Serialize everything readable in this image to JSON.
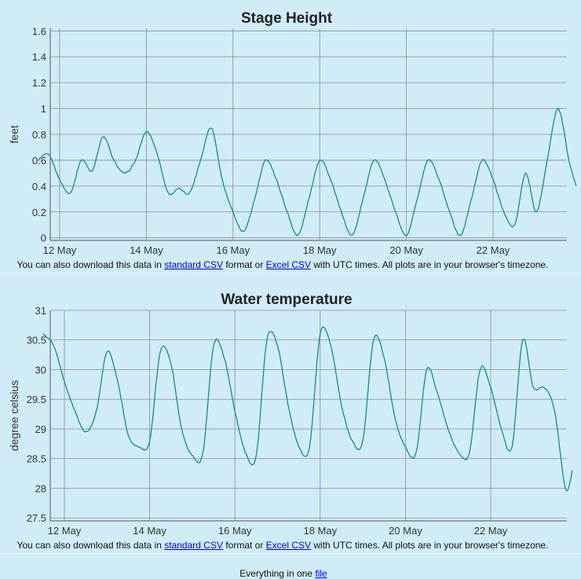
{
  "notice": {
    "prefix": "You can also download this data in",
    "standard_csv": "standard CSV",
    "middle": "format or",
    "excel_csv": "Excel CSV",
    "suffix": "with UTC times. All plots are in your browser's timezone."
  },
  "footer": {
    "prefix": "Everything in one",
    "link": "file"
  },
  "colors": {
    "line": "#138d90",
    "grid": "#8c8c8c",
    "background": "#d0ecf7"
  },
  "chart_data": [
    {
      "type": "line",
      "title": "Stage Height",
      "ylabel": "feet",
      "xlabel": "",
      "x_ticks": [
        "12 May",
        "14 May",
        "16 May",
        "18 May",
        "20 May",
        "22 May"
      ],
      "y_ticks": [
        "0",
        "0.2",
        "0.4",
        "0.6",
        "0.8",
        "1",
        "1.2",
        "1.4",
        "1.6"
      ],
      "ylim": [
        -0.02,
        1.62
      ],
      "xlim": [
        "2024-05-11T12:00",
        "2024-05-23T22:00"
      ],
      "grid": true,
      "series": [
        {
          "x": [
            "2024-05-11T12:00",
            "2024-05-11T18:00",
            "2024-05-12T00:00",
            "2024-05-12T06:00",
            "2024-05-12T12:00",
            "2024-05-12T18:00",
            "2024-05-13T00:00",
            "2024-05-13T06:00",
            "2024-05-13T12:00",
            "2024-05-13T18:00",
            "2024-05-14T00:00",
            "2024-05-14T06:00",
            "2024-05-14T12:00",
            "2024-05-14T18:00",
            "2024-05-15T00:00",
            "2024-05-15T06:00",
            "2024-05-15T12:00",
            "2024-05-15T18:00",
            "2024-05-16T00:00",
            "2024-05-16T06:00",
            "2024-05-16T12:00",
            "2024-05-16T18:00",
            "2024-05-17T00:00",
            "2024-05-17T06:00",
            "2024-05-17T12:00",
            "2024-05-17T18:00",
            "2024-05-18T00:00",
            "2024-05-18T06:00",
            "2024-05-18T12:00",
            "2024-05-18T18:00",
            "2024-05-19T00:00",
            "2024-05-19T06:00",
            "2024-05-19T12:00",
            "2024-05-19T18:00",
            "2024-05-20T00:00",
            "2024-05-20T06:00",
            "2024-05-20T12:00",
            "2024-05-20T18:00",
            "2024-05-21T00:00",
            "2024-05-21T06:00",
            "2024-05-21T12:00",
            "2024-05-21T18:00",
            "2024-05-22T00:00",
            "2024-05-22T06:00",
            "2024-05-22T12:00",
            "2024-05-22T18:00",
            "2024-05-23T00:00",
            "2024-05-23T06:00",
            "2024-05-23T12:00",
            "2024-05-23T18:00",
            "2024-05-23T22:00"
          ],
          "y": [
            0.6,
            0.64,
            0.45,
            0.35,
            0.6,
            0.52,
            0.78,
            0.6,
            0.5,
            0.6,
            0.82,
            0.65,
            0.35,
            0.38,
            0.35,
            0.6,
            0.85,
            0.45,
            0.2,
            0.05,
            0.3,
            0.6,
            0.45,
            0.2,
            0.02,
            0.3,
            0.6,
            0.45,
            0.2,
            0.02,
            0.3,
            0.6,
            0.45,
            0.2,
            0.02,
            0.3,
            0.6,
            0.45,
            0.2,
            0.02,
            0.3,
            0.6,
            0.45,
            0.2,
            0.1,
            0.5,
            0.2,
            0.6,
            1.0,
            0.6,
            0.4
          ]
        }
      ]
    },
    {
      "type": "line",
      "title": "Water temperature",
      "ylabel": "degree celsius",
      "xlabel": "",
      "x_ticks": [
        "12 May",
        "14 May",
        "16 May",
        "18 May",
        "20 May",
        "22 May"
      ],
      "y_ticks": [
        "27.5",
        "28",
        "28.5",
        "29",
        "29.5",
        "30",
        "30.5",
        "31"
      ],
      "ylim": [
        27.45,
        31.0
      ],
      "xlim": [
        "2024-05-11T12:00",
        "2024-05-23T22:00"
      ],
      "grid": true,
      "series": [
        {
          "x": [
            "2024-05-11T12:00",
            "2024-05-11T18:00",
            "2024-05-12T00:00",
            "2024-05-12T06:00",
            "2024-05-12T12:00",
            "2024-05-12T18:00",
            "2024-05-13T00:00",
            "2024-05-13T06:00",
            "2024-05-13T12:00",
            "2024-05-13T18:00",
            "2024-05-14T00:00",
            "2024-05-14T06:00",
            "2024-05-14T12:00",
            "2024-05-14T18:00",
            "2024-05-15T00:00",
            "2024-05-15T06:00",
            "2024-05-15T12:00",
            "2024-05-15T18:00",
            "2024-05-16T00:00",
            "2024-05-16T06:00",
            "2024-05-16T12:00",
            "2024-05-16T18:00",
            "2024-05-17T00:00",
            "2024-05-17T06:00",
            "2024-05-17T12:00",
            "2024-05-17T18:00",
            "2024-05-18T00:00",
            "2024-05-18T06:00",
            "2024-05-18T12:00",
            "2024-05-18T18:00",
            "2024-05-19T00:00",
            "2024-05-19T06:00",
            "2024-05-19T12:00",
            "2024-05-19T18:00",
            "2024-05-20T00:00",
            "2024-05-20T06:00",
            "2024-05-20T12:00",
            "2024-05-20T18:00",
            "2024-05-21T00:00",
            "2024-05-21T06:00",
            "2024-05-21T12:00",
            "2024-05-21T18:00",
            "2024-05-22T00:00",
            "2024-05-22T06:00",
            "2024-05-22T12:00",
            "2024-05-22T18:00",
            "2024-05-23T00:00",
            "2024-05-23T06:00",
            "2024-05-23T12:00",
            "2024-05-23T18:00",
            "2024-05-23T22:00"
          ],
          "y": [
            30.6,
            30.4,
            29.8,
            29.3,
            28.95,
            29.3,
            30.3,
            29.8,
            28.9,
            28.7,
            28.8,
            30.3,
            30.1,
            29.0,
            28.55,
            28.6,
            30.4,
            30.2,
            29.3,
            28.6,
            28.55,
            30.5,
            30.4,
            29.4,
            28.7,
            28.7,
            30.6,
            30.4,
            29.4,
            28.8,
            28.8,
            30.5,
            30.2,
            29.2,
            28.7,
            28.6,
            30.0,
            29.6,
            29.0,
            28.6,
            28.6,
            30.0,
            29.7,
            29.0,
            28.7,
            30.5,
            29.7,
            29.7,
            29.3,
            28.0,
            28.3
          ]
        }
      ]
    }
  ]
}
